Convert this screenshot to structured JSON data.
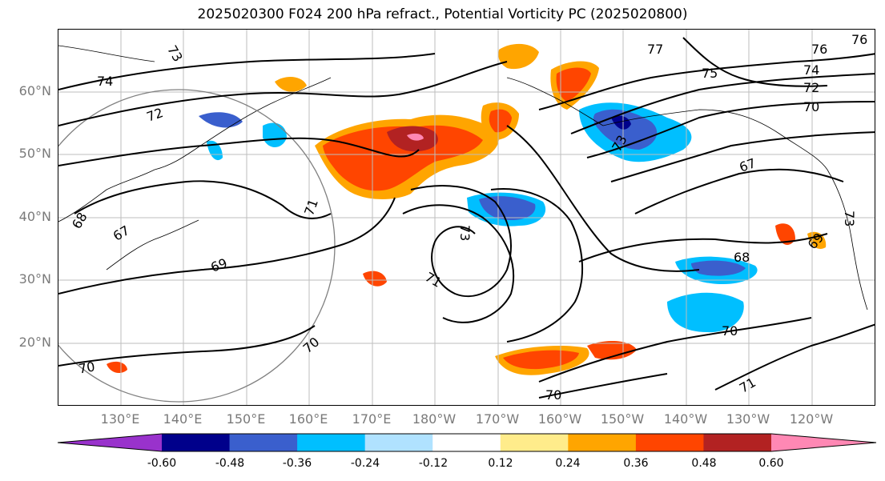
{
  "title": "2025020300 F024 200 hPa refract., Potential Vorticity PC (2025020800)",
  "map": {
    "lat_labels": [
      "60°N",
      "50°N",
      "40°N",
      "30°N",
      "20°N"
    ],
    "lon_labels": [
      "130°E",
      "140°E",
      "150°E",
      "160°E",
      "170°E",
      "180°W",
      "170°W",
      "160°W",
      "150°W",
      "140°W",
      "130°W",
      "120°W"
    ],
    "contour_labels": [
      "74",
      "73",
      "72",
      "67",
      "68",
      "69",
      "70",
      "71",
      "73",
      "71",
      "70",
      "70",
      "77",
      "75",
      "76",
      "74",
      "72",
      "70",
      "73",
      "67",
      "68",
      "69",
      "70",
      "71",
      "76",
      "73"
    ]
  },
  "colorbar": {
    "ticks": [
      "-0.60",
      "-0.48",
      "-0.36",
      "-0.24",
      "-0.12",
      "0.12",
      "0.24",
      "0.36",
      "0.48",
      "0.60"
    ],
    "colors": [
      "#9932cc",
      "#00008b",
      "#3a5fcd",
      "#00bfff",
      "#b0e2ff",
      "#ffffff",
      "#ffec8b",
      "#ffa500",
      "#ff4500",
      "#b22222",
      "#ff88b4"
    ]
  }
}
